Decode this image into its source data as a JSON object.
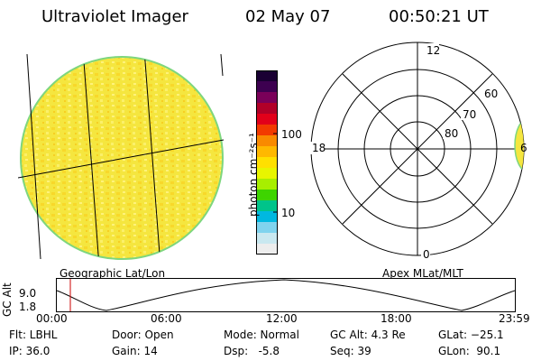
{
  "header": {
    "instrument": "Ultraviolet Imager",
    "date": "02 May 07",
    "time": "00:50:21 UT"
  },
  "globe": {
    "label": "Geographic Lat/Lon",
    "fill": "#f3e23a",
    "limb": "#7ed67e"
  },
  "colorbar": {
    "unit_label": "photon cm⁻²s⁻¹",
    "ticks": [
      "100",
      "10"
    ],
    "colors": [
      "#1a0033",
      "#3d0050",
      "#7a0059",
      "#b10028",
      "#e2001a",
      "#f23a00",
      "#f98a00",
      "#ffb800",
      "#ffe000",
      "#e8f500",
      "#a8ee00",
      "#3ed400",
      "#00c48a",
      "#00b8e0",
      "#7fd3ee",
      "#c9e8f0",
      "#ededed"
    ]
  },
  "polar": {
    "label": "Apex MLat/MLT",
    "mlt_top": "12",
    "mlt_left": "18",
    "mlt_bottom": "0",
    "mlt_right": "6",
    "lat_labels": [
      "60",
      "70",
      "80"
    ]
  },
  "altitude_plot": {
    "ylabel": "GC Alt",
    "y_ticks": [
      "9.0",
      "1.8"
    ],
    "x_ticks": [
      "00:00",
      "06:00",
      "12:00",
      "18:00",
      "23:59"
    ],
    "marker_color": "#cc0000"
  },
  "info": {
    "flt": "Flt: LBHL",
    "ip": "IP: 36.0",
    "door": "Door: Open",
    "gain": "Gain: 14",
    "mode": "Mode: Normal",
    "dsp": "Dsp:   -5.8",
    "gcalt": "GC Alt: 4.3 Re",
    "seq": "Seq: 39",
    "glat": "GLat: −25.1",
    "glon": "GLon:  90.1"
  }
}
